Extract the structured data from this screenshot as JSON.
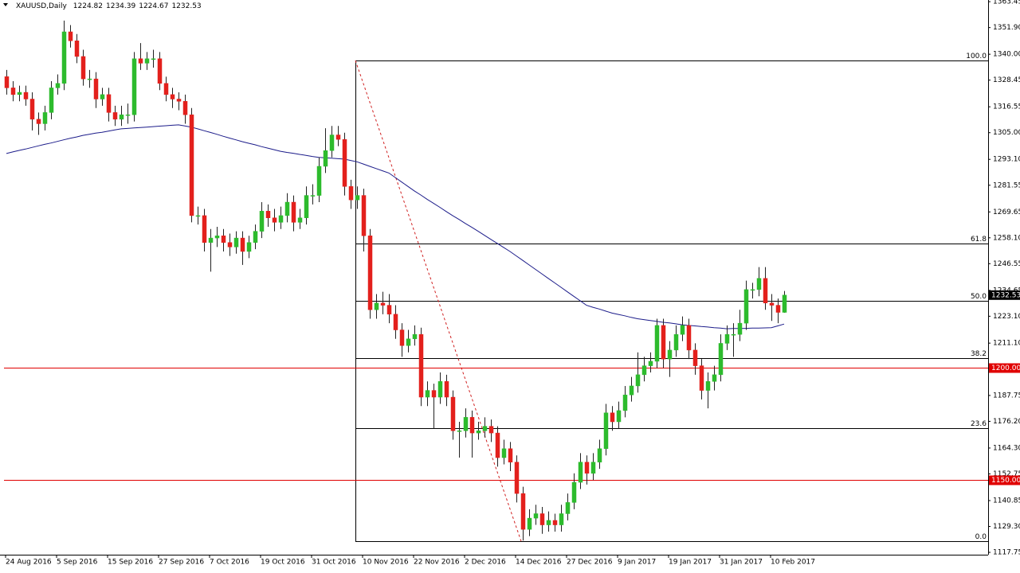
{
  "chart_data": {
    "type": "candlestick",
    "symbol": "XAUUSD,Daily",
    "up_color": "#2dbb2d",
    "down_color": "#e3201c",
    "ma_color": "#1c1c8a",
    "level_color": "#e00000",
    "ylim": [
      1116.7,
      1364.2
    ],
    "yticks": [
      {
        "value": 1363.45,
        "label": "1363.45"
      },
      {
        "value": 1351.9,
        "label": "1351.90"
      },
      {
        "value": 1340,
        "label": "1340.00"
      },
      {
        "value": 1328.45,
        "label": "1328.45"
      },
      {
        "value": 1316.55,
        "label": "1316.55"
      },
      {
        "value": 1305,
        "label": "1305.00"
      },
      {
        "value": 1293.1,
        "label": "1293.10"
      },
      {
        "value": 1281.55,
        "label": "1281.55"
      },
      {
        "value": 1269.65,
        "label": "1269.65"
      },
      {
        "value": 1258.1,
        "label": "1258.10"
      },
      {
        "value": 1246.55,
        "label": "1246.55"
      },
      {
        "value": 1234.65,
        "label": "1234.65"
      },
      {
        "value": 1223.1,
        "label": "1223.10"
      },
      {
        "value": 1211.1,
        "label": "1211.10"
      },
      {
        "value": 1187.75,
        "label": "1187.75"
      },
      {
        "value": 1176.2,
        "label": "1176.20"
      },
      {
        "value": 1164.3,
        "label": "1164.30"
      },
      {
        "value": 1152.75,
        "label": "1152.75"
      },
      {
        "value": 1140.85,
        "label": "1140.85"
      },
      {
        "value": 1129.3,
        "label": "1129.30"
      },
      {
        "value": 1117.75,
        "label": "1117.75"
      }
    ],
    "categories": [
      "24 Aug 2016",
      null,
      null,
      null,
      null,
      null,
      null,
      null,
      "5 Sep 2016",
      null,
      null,
      null,
      null,
      null,
      null,
      null,
      "15 Sep 2016",
      null,
      null,
      null,
      null,
      null,
      null,
      null,
      "27 Sep 2016",
      null,
      null,
      null,
      null,
      null,
      null,
      null,
      "7 Oct 2016",
      null,
      null,
      null,
      null,
      null,
      null,
      null,
      "19 Oct 2016",
      null,
      null,
      null,
      null,
      null,
      null,
      null,
      "31 Oct 2016",
      null,
      null,
      null,
      null,
      null,
      null,
      null,
      "10 Nov 2016",
      null,
      null,
      null,
      null,
      null,
      null,
      null,
      "22 Nov 2016",
      null,
      null,
      null,
      null,
      null,
      null,
      null,
      "2 Dec 2016",
      null,
      null,
      null,
      null,
      null,
      null,
      null,
      "14 Dec 2016",
      null,
      null,
      null,
      null,
      null,
      null,
      null,
      "27 Dec 2016",
      null,
      null,
      null,
      null,
      null,
      null,
      null,
      "9 Jan 2017",
      null,
      null,
      null,
      null,
      null,
      null,
      null,
      "19 Jan 2017",
      null,
      null,
      null,
      null,
      null,
      null,
      null,
      "31 Jan 2017",
      null,
      null,
      null,
      null,
      null,
      null,
      null,
      "10 Feb 2017",
      null,
      null
    ],
    "ohlc": [
      [
        1330,
        1333,
        1322,
        1325
      ],
      [
        1325,
        1328,
        1319,
        1322
      ],
      [
        1322,
        1326,
        1319,
        1323
      ],
      [
        1323,
        1326,
        1317,
        1320
      ],
      [
        1320,
        1323,
        1306,
        1311
      ],
      [
        1311,
        1314,
        1304,
        1309
      ],
      [
        1309,
        1317,
        1306,
        1314
      ],
      [
        1314,
        1328,
        1311,
        1325
      ],
      [
        1325,
        1331,
        1322,
        1327
      ],
      [
        1327,
        1355,
        1324,
        1350
      ],
      [
        1350,
        1353,
        1343,
        1346
      ],
      [
        1346,
        1349,
        1336,
        1339
      ],
      [
        1339,
        1342,
        1326,
        1329
      ],
      [
        1329,
        1333,
        1325,
        1329
      ],
      [
        1329,
        1332,
        1316,
        1320
      ],
      [
        1320,
        1325,
        1317,
        1322
      ],
      [
        1322,
        1325,
        1310,
        1314
      ],
      [
        1314,
        1317,
        1308,
        1311
      ],
      [
        1311,
        1317,
        1308,
        1313
      ],
      [
        1313,
        1318,
        1309,
        1313
      ],
      [
        1313,
        1341,
        1310,
        1338
      ],
      [
        1338,
        1345,
        1333,
        1336
      ],
      [
        1336,
        1341,
        1333,
        1338
      ],
      [
        1338,
        1342,
        1334,
        1338
      ],
      [
        1338,
        1341,
        1324,
        1327
      ],
      [
        1327,
        1330,
        1319,
        1322
      ],
      [
        1322,
        1325,
        1316,
        1320
      ],
      [
        1320,
        1323,
        1315,
        1319
      ],
      [
        1319,
        1322,
        1309,
        1313
      ],
      [
        1313,
        1316,
        1265,
        1268
      ],
      [
        1268,
        1272,
        1264,
        1268
      ],
      [
        1268,
        1271,
        1252,
        1256
      ],
      [
        1256,
        1262,
        1243,
        1258
      ],
      [
        1258,
        1263,
        1254,
        1259
      ],
      [
        1259,
        1262,
        1252,
        1256
      ],
      [
        1256,
        1260,
        1250,
        1254
      ],
      [
        1254,
        1261,
        1251,
        1258
      ],
      [
        1258,
        1261,
        1246,
        1252
      ],
      [
        1252,
        1259,
        1249,
        1256
      ],
      [
        1256,
        1264,
        1253,
        1261
      ],
      [
        1261,
        1274,
        1258,
        1270
      ],
      [
        1270,
        1273,
        1263,
        1267
      ],
      [
        1267,
        1271,
        1261,
        1265
      ],
      [
        1265,
        1272,
        1262,
        1268
      ],
      [
        1268,
        1278,
        1265,
        1274
      ],
      [
        1274,
        1277,
        1261,
        1265
      ],
      [
        1265,
        1271,
        1262,
        1267
      ],
      [
        1267,
        1281,
        1264,
        1277
      ],
      [
        1277,
        1282,
        1273,
        1277
      ],
      [
        1277,
        1294,
        1274,
        1290
      ],
      [
        1290,
        1307,
        1287,
        1297
      ],
      [
        1297,
        1308,
        1294,
        1304
      ],
      [
        1304,
        1308,
        1299,
        1302
      ],
      [
        1302,
        1305,
        1277,
        1281
      ],
      [
        1281,
        1284,
        1271,
        1275
      ],
      [
        1275,
        1281,
        1271,
        1277
      ],
      [
        1277,
        1280,
        1252,
        1259
      ],
      [
        1259,
        1262,
        1222,
        1226
      ],
      [
        1226,
        1233,
        1222,
        1229
      ],
      [
        1229,
        1234,
        1224,
        1228
      ],
      [
        1228,
        1233,
        1220,
        1224
      ],
      [
        1224,
        1228,
        1213,
        1217
      ],
      [
        1217,
        1220,
        1205,
        1210
      ],
      [
        1210,
        1217,
        1207,
        1213
      ],
      [
        1213,
        1219,
        1210,
        1215
      ],
      [
        1215,
        1218,
        1183,
        1187
      ],
      [
        1187,
        1194,
        1183,
        1190
      ],
      [
        1190,
        1193,
        1173,
        1187
      ],
      [
        1187,
        1198,
        1184,
        1194
      ],
      [
        1194,
        1197,
        1183,
        1187
      ],
      [
        1187,
        1190,
        1168,
        1172
      ],
      [
        1172,
        1176,
        1160,
        1172
      ],
      [
        1172,
        1182,
        1169,
        1178
      ],
      [
        1178,
        1181,
        1160,
        1171
      ],
      [
        1171,
        1176,
        1168,
        1172
      ],
      [
        1172,
        1178,
        1169,
        1174
      ],
      [
        1174,
        1177,
        1167,
        1171
      ],
      [
        1171,
        1174,
        1156,
        1160
      ],
      [
        1160,
        1168,
        1157,
        1164
      ],
      [
        1164,
        1167,
        1154,
        1158
      ],
      [
        1158,
        1161,
        1140,
        1144
      ],
      [
        1144,
        1147,
        1123,
        1128
      ],
      [
        1128,
        1137,
        1125,
        1133
      ],
      [
        1133,
        1139,
        1130,
        1135
      ],
      [
        1135,
        1138,
        1126,
        1130
      ],
      [
        1130,
        1136,
        1127,
        1132
      ],
      [
        1132,
        1135,
        1127,
        1130
      ],
      [
        1130,
        1139,
        1127,
        1135
      ],
      [
        1135,
        1144,
        1132,
        1140
      ],
      [
        1140,
        1153,
        1137,
        1149
      ],
      [
        1149,
        1162,
        1146,
        1158
      ],
      [
        1158,
        1161,
        1148,
        1153
      ],
      [
        1153,
        1162,
        1150,
        1158
      ],
      [
        1158,
        1168,
        1155,
        1164
      ],
      [
        1164,
        1184,
        1161,
        1180
      ],
      [
        1180,
        1183,
        1172,
        1176
      ],
      [
        1176,
        1185,
        1173,
        1181
      ],
      [
        1181,
        1192,
        1178,
        1188
      ],
      [
        1188,
        1196,
        1185,
        1192
      ],
      [
        1192,
        1207,
        1189,
        1197
      ],
      [
        1197,
        1205,
        1194,
        1201
      ],
      [
        1201,
        1207,
        1198,
        1203
      ],
      [
        1203,
        1222,
        1200,
        1219
      ],
      [
        1219,
        1222,
        1200,
        1204
      ],
      [
        1204,
        1212,
        1196,
        1208
      ],
      [
        1208,
        1219,
        1205,
        1215
      ],
      [
        1215,
        1223,
        1212,
        1219
      ],
      [
        1219,
        1222,
        1204,
        1208
      ],
      [
        1208,
        1211,
        1197,
        1201
      ],
      [
        1201,
        1204,
        1186,
        1190
      ],
      [
        1190,
        1198,
        1182,
        1194
      ],
      [
        1194,
        1201,
        1190,
        1197
      ],
      [
        1197,
        1215,
        1194,
        1211
      ],
      [
        1211,
        1219,
        1208,
        1215
      ],
      [
        1215,
        1220,
        1205,
        1215
      ],
      [
        1215,
        1226,
        1212,
        1220
      ],
      [
        1220,
        1239,
        1217,
        1235
      ],
      [
        1235,
        1238,
        1231,
        1235
      ],
      [
        1235,
        1245,
        1232,
        1240
      ],
      [
        1240,
        1245,
        1226,
        1229
      ],
      [
        1229,
        1233,
        1221,
        1228
      ],
      [
        1228,
        1231,
        1220,
        1224.82
      ],
      [
        1224.82,
        1234.39,
        1224.67,
        1232.53
      ]
    ],
    "ma": [
      1295.7,
      1296.4,
      1297.1,
      1297.7,
      1298.4,
      1299.1,
      1299.8,
      1300.4,
      1301.1,
      1301.8,
      1302.5,
      1303.1,
      1303.8,
      1304.3,
      1304.8,
      1305.2,
      1305.7,
      1306.2,
      1306.7,
      1306.9,
      1307.1,
      1307.3,
      1307.5,
      1307.7,
      1307.9,
      1308.1,
      1308.3,
      1308.5,
      1308.0,
      1307.5,
      1306.7,
      1305.9,
      1305.1,
      1304.3,
      1303.4,
      1302.6,
      1301.8,
      1301.0,
      1300.3,
      1299.6,
      1298.8,
      1298.1,
      1297.4,
      1296.7,
      1296.2,
      1295.8,
      1295.3,
      1294.9,
      1294.4,
      1294.0,
      1293.8,
      1293.6,
      1293.4,
      1293.2,
      1292.6,
      1292.0,
      1291,
      1290,
      1289,
      1288,
      1287,
      1285,
      1283,
      1281,
      1279,
      1277.2,
      1275.3,
      1273.5,
      1271.7,
      1269.8,
      1268,
      1266.3,
      1264.5,
      1262.8,
      1261,
      1259.2,
      1257.4,
      1255.6,
      1253.8,
      1252,
      1250,
      1248,
      1246,
      1244,
      1242,
      1240,
      1238,
      1236,
      1234,
      1232,
      1230,
      1228,
      1227.1,
      1226.3,
      1225.4,
      1224.5,
      1223.9,
      1223.3,
      1222.6,
      1222,
      1221.6,
      1221.2,
      1220.8,
      1220.4,
      1220.1,
      1219.7,
      1219.3,
      1219.0,
      1218.8,
      1218.5,
      1218.3,
      1218.0,
      1217.8,
      1217.5,
      1217.6,
      1217.6,
      1217.7,
      1217.8,
      1217.8,
      1217.9,
      1218.0,
      1218.8,
      1219.6
    ],
    "fibonacci": [
      {
        "label": "100.0",
        "value": 1337.2
      },
      {
        "label": "61.8",
        "value": 1255.5
      },
      {
        "label": "50.0",
        "value": 1230.0
      },
      {
        "label": "38.2",
        "value": 1204.4
      },
      {
        "label": "23.6",
        "value": 1173.2
      },
      {
        "label": "0.0",
        "value": 1122.7
      }
    ],
    "levels": [
      {
        "value": 1200,
        "label": "1200.00"
      },
      {
        "value": 1150,
        "label": "1150.00"
      }
    ]
  }
}
